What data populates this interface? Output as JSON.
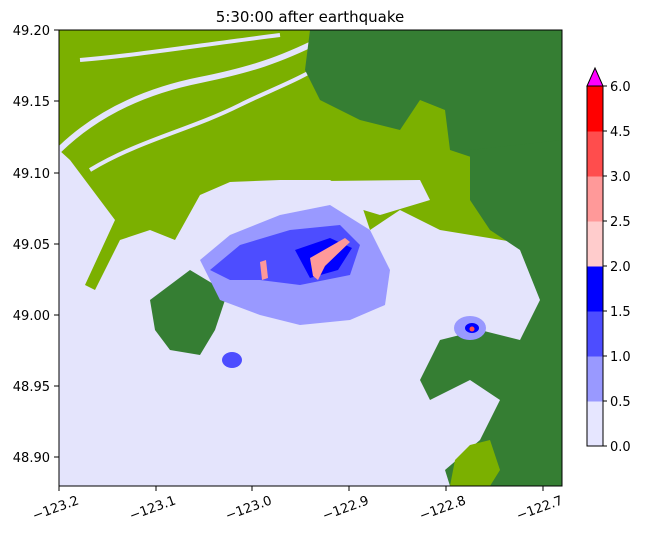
{
  "title": "5:30:00 after earthquake",
  "chart_data": {
    "type": "heatmap",
    "title": "5:30:00 after earthquake",
    "xlabel": "",
    "ylabel": "",
    "xlim": [
      -123.2,
      -122.68
    ],
    "ylim": [
      48.88,
      49.2
    ],
    "x_ticks": [
      "−123.2",
      "−123.1",
      "−123.0",
      "−122.9",
      "−122.8",
      "−122.7"
    ],
    "y_ticks": [
      "49.20",
      "49.15",
      "49.10",
      "49.05",
      "49.00",
      "48.95",
      "48.90"
    ],
    "colorbar": {
      "ticks": [
        "0.0",
        "0.5",
        "1.0",
        "1.5",
        "2.0",
        "2.5",
        "3.0",
        "4.5",
        "6.0"
      ],
      "colors": [
        "#e6e6ff",
        "#9999ff",
        "#4d4dff",
        "#0000ff",
        "#ffcccc",
        "#ff9999",
        "#ff4d4d",
        "#ff0000"
      ],
      "extend_max_color": "#ff00ff",
      "grid": false
    },
    "colors": {
      "water": "#e4e4fc",
      "land_low": "#7bb000",
      "land_high": "#357e33"
    }
  }
}
